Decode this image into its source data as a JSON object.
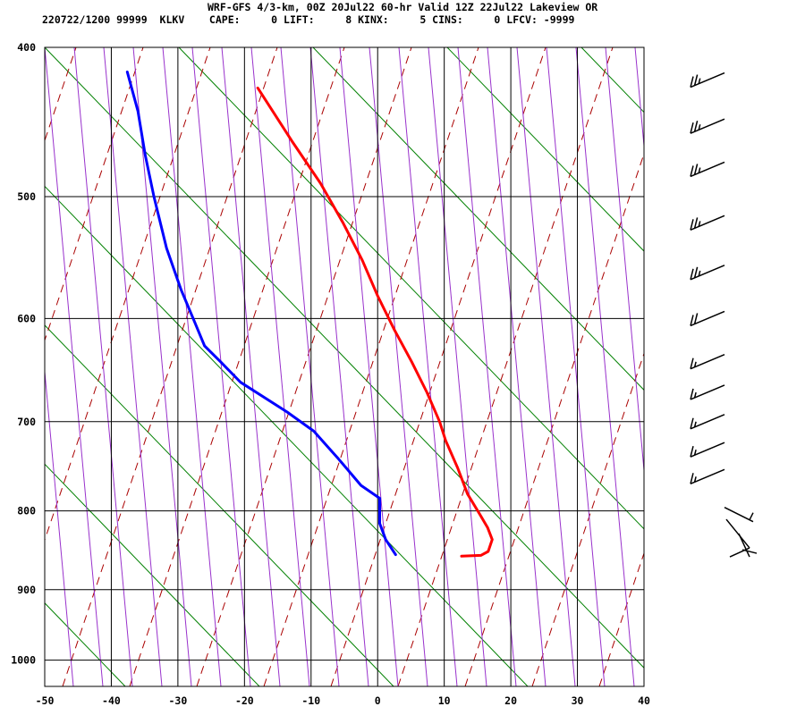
{
  "header": {
    "title": "WRF-GFS 4/3-km, 00Z 20Jul22 60-hr Valid 12Z 22Jul22 Lakeview OR",
    "subtitle": "220722/1200 99999  KLKV    CAPE:     0 LIFT:     8 KINX:     5 CINS:     0 LFCV: -9999"
  },
  "chart_data": {
    "type": "skew-t",
    "xlim": [
      -50,
      40
    ],
    "pressure_range": [
      400,
      1040
    ],
    "x_ticks": [
      -50,
      -40,
      -30,
      -20,
      -10,
      0,
      10,
      20,
      30,
      40
    ],
    "x_tick_labels": [
      "-50",
      "-40",
      "-30",
      "-20",
      "-10",
      "0",
      "10",
      "20",
      "30",
      "40"
    ],
    "p_ticks": [
      400,
      500,
      600,
      700,
      800,
      900,
      1000
    ],
    "p_tick_labels": [
      "400",
      "500",
      "600",
      "700",
      "800",
      "900",
      "1000"
    ],
    "series": [
      {
        "id": "temperature",
        "color": "#ff0000",
        "points": [
          {
            "p": 856,
            "x": 12.6
          },
          {
            "p": 855,
            "x": 15.5
          },
          {
            "p": 850,
            "x": 16.6
          },
          {
            "p": 835,
            "x": 17.2
          },
          {
            "p": 820,
            "x": 16.5
          },
          {
            "p": 805,
            "x": 15.4
          },
          {
            "p": 780,
            "x": 13.5
          },
          {
            "p": 750,
            "x": 12.0
          },
          {
            "p": 720,
            "x": 10.2
          },
          {
            "p": 700,
            "x": 9.3
          },
          {
            "p": 670,
            "x": 7.4
          },
          {
            "p": 640,
            "x": 5.1
          },
          {
            "p": 610,
            "x": 2.5
          },
          {
            "p": 580,
            "x": 0.0
          },
          {
            "p": 550,
            "x": -2.3
          },
          {
            "p": 520,
            "x": -5.2
          },
          {
            "p": 490,
            "x": -8.6
          },
          {
            "p": 460,
            "x": -12.9
          },
          {
            "p": 425,
            "x": -18.0
          }
        ]
      },
      {
        "id": "dewpoint",
        "color": "#0000ff",
        "points": [
          {
            "p": 854,
            "x": 2.7
          },
          {
            "p": 835,
            "x": 1.2
          },
          {
            "p": 815,
            "x": 0.3
          },
          {
            "p": 805,
            "x": 0.3
          },
          {
            "p": 785,
            "x": 0.3
          },
          {
            "p": 770,
            "x": -2.5
          },
          {
            "p": 740,
            "x": -5.9
          },
          {
            "p": 710,
            "x": -9.6
          },
          {
            "p": 690,
            "x": -13.6
          },
          {
            "p": 660,
            "x": -20.6
          },
          {
            "p": 640,
            "x": -23.6
          },
          {
            "p": 625,
            "x": -26.0
          },
          {
            "p": 600,
            "x": -27.7
          },
          {
            "p": 575,
            "x": -29.5
          },
          {
            "p": 540,
            "x": -31.7
          },
          {
            "p": 500,
            "x": -33.6
          },
          {
            "p": 470,
            "x": -34.9
          },
          {
            "p": 440,
            "x": -36.0
          },
          {
            "p": 415,
            "x": -37.6
          }
        ]
      }
    ],
    "background": {
      "isotherm_color": "#000000",
      "isobar_color": "#000000",
      "dry_adiabat_color": "#008000",
      "moist_adiabat_color": "#9932cc",
      "mixing_ratio_color": "#aa0000"
    },
    "wind_barbs": [
      {
        "p": 420,
        "speed_kt": 25
      },
      {
        "p": 450,
        "speed_kt": 25
      },
      {
        "p": 480,
        "speed_kt": 25
      },
      {
        "p": 520,
        "speed_kt": 25
      },
      {
        "p": 560,
        "speed_kt": 25
      },
      {
        "p": 600,
        "speed_kt": 20
      },
      {
        "p": 640,
        "speed_kt": 15
      },
      {
        "p": 670,
        "speed_kt": 15
      },
      {
        "p": 700,
        "speed_kt": 15
      },
      {
        "p": 730,
        "speed_kt": 15
      },
      {
        "p": 760,
        "speed_kt": 15
      },
      {
        "p": 800,
        "speed_kt": 5
      },
      {
        "p": 850,
        "speed_kt": 10
      }
    ]
  }
}
